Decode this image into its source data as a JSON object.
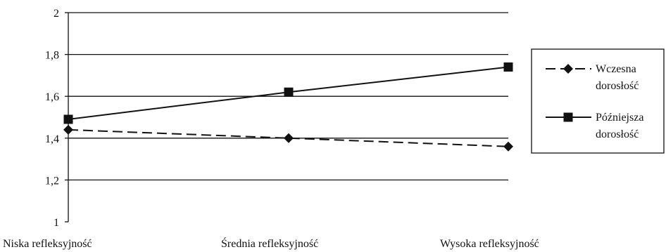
{
  "chart_data": {
    "type": "line",
    "categories": [
      "Niska refleksyjność",
      "Średnia refleksyjność",
      "Wysoka refleksyjność"
    ],
    "series": [
      {
        "name_lines": [
          "Wczesna",
          "dorosłość"
        ],
        "values": [
          1.44,
          1.4,
          1.36
        ],
        "line_style": "dashed",
        "marker": "diamond",
        "color": "#111111"
      },
      {
        "name_lines": [
          "Późniejsza",
          "dorosłość"
        ],
        "values": [
          1.49,
          1.62,
          1.74
        ],
        "line_style": "solid",
        "marker": "square",
        "color": "#111111"
      }
    ],
    "ylim": [
      1,
      2
    ],
    "yticks": [
      1,
      1.2,
      1.4,
      1.6,
      1.8,
      2
    ],
    "ytick_labels": [
      "1",
      "1,2",
      "1,4",
      "1,6",
      "1,8",
      "2"
    ],
    "grid": "horizontal",
    "legend_position": "right"
  }
}
